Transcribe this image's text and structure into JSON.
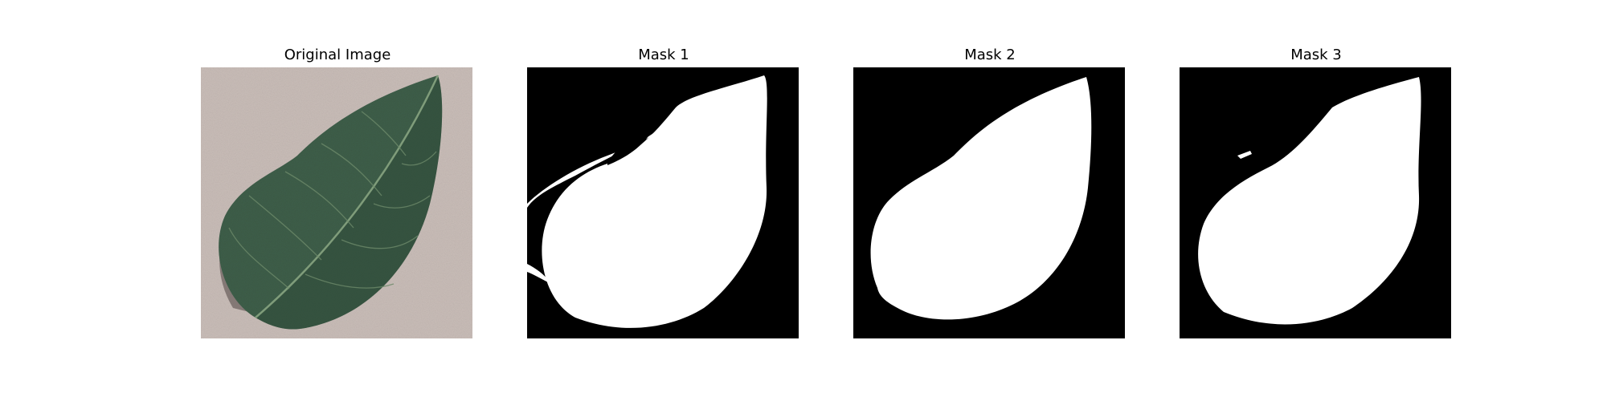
{
  "panels": [
    {
      "title": "Original Image",
      "kind": "photo"
    },
    {
      "title": "Mask 1",
      "kind": "mask"
    },
    {
      "title": "Mask 2",
      "kind": "mask"
    },
    {
      "title": "Mask 3",
      "kind": "mask"
    }
  ],
  "colors": {
    "background": "#c9bdb8",
    "leaf": "#3f5f4a",
    "leaf_dark": "#2f4a38",
    "vein": "#7f9c7a",
    "shadow": "#6d6360",
    "mask_bg": "#000000",
    "mask_fg": "#ffffff"
  }
}
